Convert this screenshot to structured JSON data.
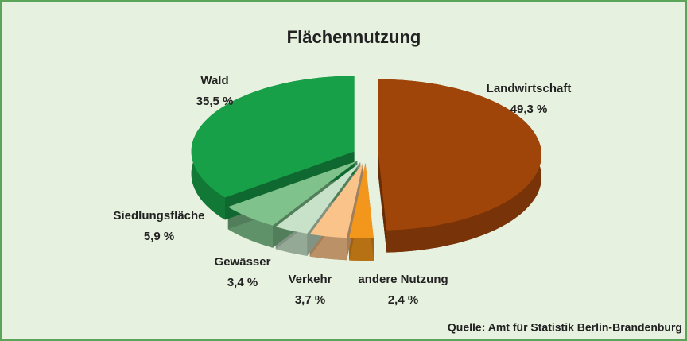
{
  "chart_data": {
    "type": "pie",
    "title": "Flächennutzung",
    "categories": [
      "Landwirtschaft",
      "andere Nutzung",
      "Verkehr",
      "Gewässer",
      "Siedlungsfläche",
      "Wald"
    ],
    "values": [
      49.3,
      2.4,
      3.7,
      3.4,
      5.9,
      35.5
    ],
    "value_labels": [
      "49,3 %",
      "2,4 %",
      "3,7 %",
      "3,4 %",
      "5,9 %",
      "35,5 %"
    ],
    "colors": [
      "#a0450a",
      "#f3961c",
      "#f9c38a",
      "#c7e2c8",
      "#80c28c",
      "#17a048"
    ],
    "source": "Quelle: Amt für Statistik Berlin-Brandenburg"
  }
}
